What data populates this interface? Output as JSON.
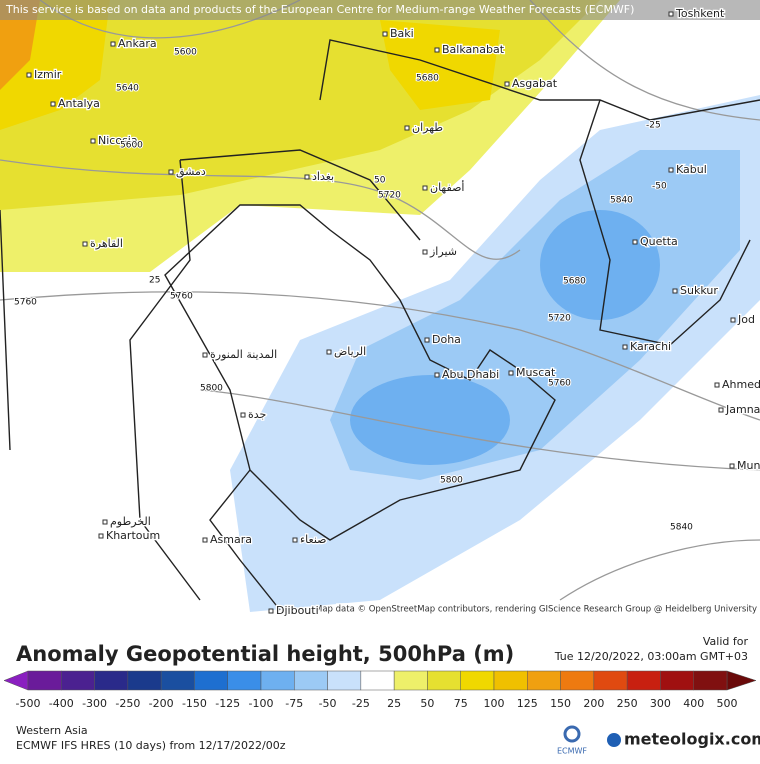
{
  "header": {
    "notice": "This service is based on data and products of the European Centre for Medium-range Weather Forecasts (ECMWF)"
  },
  "map": {
    "attribution": "Map data © OpenStreetMap contributors, rendering GIScience Research Group @ Heidelberg University",
    "places": [
      "Ankara",
      "Baki",
      "Balkanabat",
      "Izmir",
      "Antalya",
      "Nicosia",
      "Asgabat",
      "Kabul",
      "Quetta",
      "Sukkur",
      "Karachi",
      "Doha",
      "Abu Dhabi",
      "Muscat",
      "Asmara",
      "Khartoum",
      "Ahmed",
      "Jamnag",
      "Mun",
      "Jod",
      "Toshkent",
      "Djibouti",
      "الرياض",
      "القاهرة",
      "بغداد",
      "طهران",
      "دمشق",
      "جدة",
      "صنعاء",
      "المدينة المنورة",
      "الخرطوم",
      "شيراز",
      "أصفهان"
    ],
    "contour_labels": [
      5600,
      5640,
      5680,
      5720,
      50,
      25,
      5760,
      5760,
      5800,
      5840,
      5680,
      5720,
      5760,
      5800,
      5840,
      -25,
      -50,
      5600
    ]
  },
  "legend": {
    "title": "Anomaly Geopotential height, 500hPa (m)",
    "valid_label": "Valid for",
    "valid_time": "Tue 12/20/2022, 03:00am GMT+03",
    "ticks": [
      -500,
      -400,
      -300,
      -250,
      -200,
      -150,
      -125,
      -100,
      -75,
      -50,
      -25,
      25,
      50,
      75,
      100,
      125,
      150,
      200,
      250,
      300,
      400,
      500
    ],
    "colors": [
      "#8a1fc0",
      "#6a1b9a",
      "#4b2190",
      "#2a2a8a",
      "#1a3a8c",
      "#1a4fa0",
      "#1e6fd0",
      "#3a8ee8",
      "#6eb0f0",
      "#9ccaf5",
      "#c9e1fb",
      "#ffffff",
      "#eef06a",
      "#e6e030",
      "#f0d800",
      "#f0c000",
      "#f0a010",
      "#ee7a10",
      "#e04a10",
      "#c82010",
      "#a01010",
      "#801010",
      "#6a0a0a"
    ]
  },
  "footer": {
    "region": "Western Asia",
    "model": "ECMWF IFS HRES (10 days) from 12/17/2022/00z",
    "ecmwf": "ECMWF",
    "brand": "meteologix.com"
  }
}
